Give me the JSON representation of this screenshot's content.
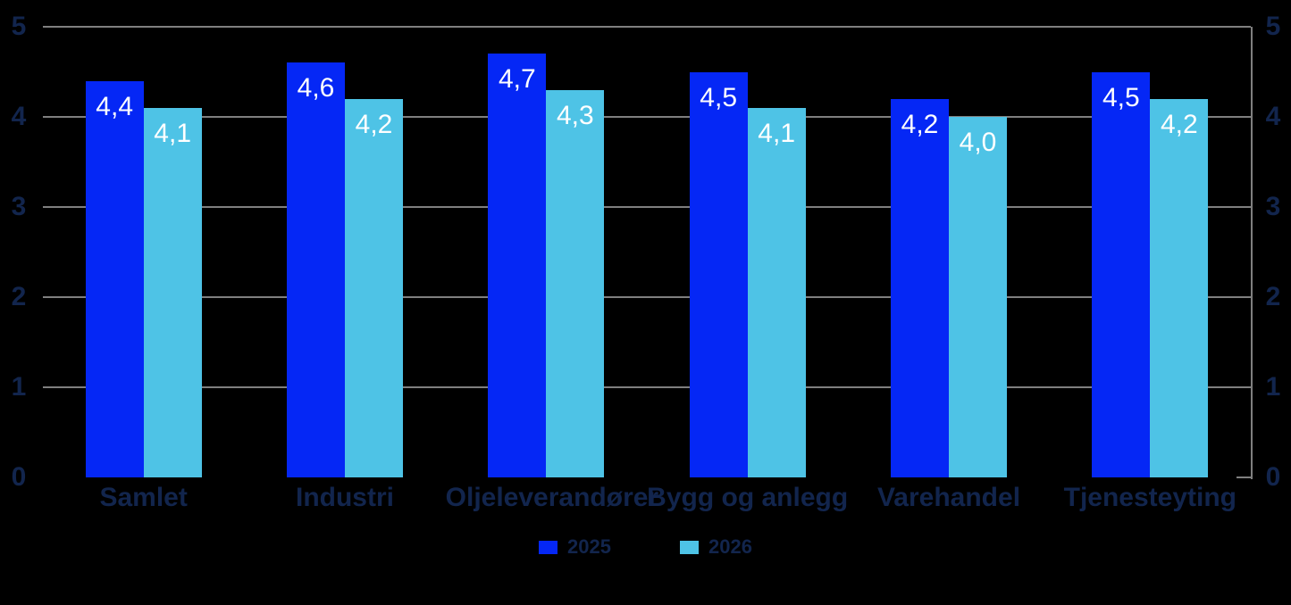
{
  "chart": {
    "background_color": "#000000",
    "axis_text_color": "#12254d",
    "grid_color": "#7f7f7f",
    "value_label_color": "#ffffff"
  },
  "chart_data": {
    "type": "bar",
    "title": "",
    "xlabel": "",
    "ylabel": "",
    "categories": [
      "Samlet",
      "Industri",
      "Oljeleverandører",
      "Bygg og anlegg",
      "Varehandel",
      "Tjenesteyting"
    ],
    "series": [
      {
        "name": "2025",
        "color": "#0527f5",
        "values": [
          4.4,
          4.6,
          4.7,
          4.5,
          4.2,
          4.5
        ],
        "value_labels": [
          "4,4",
          "4,6",
          "4,7",
          "4,5",
          "4,2",
          "4,5"
        ]
      },
      {
        "name": "2026",
        "color": "#4ec3e6",
        "values": [
          4.1,
          4.2,
          4.3,
          4.1,
          4.0,
          4.2
        ],
        "value_labels": [
          "4,1",
          "4,2",
          "4,3",
          "4,1",
          "4,0",
          "4,2"
        ]
      }
    ],
    "ylim": [
      0,
      5
    ],
    "yticks": [
      0,
      1,
      2,
      3,
      4,
      5
    ],
    "grid": true,
    "dual_y_axis": true,
    "legend_position": "bottom"
  }
}
